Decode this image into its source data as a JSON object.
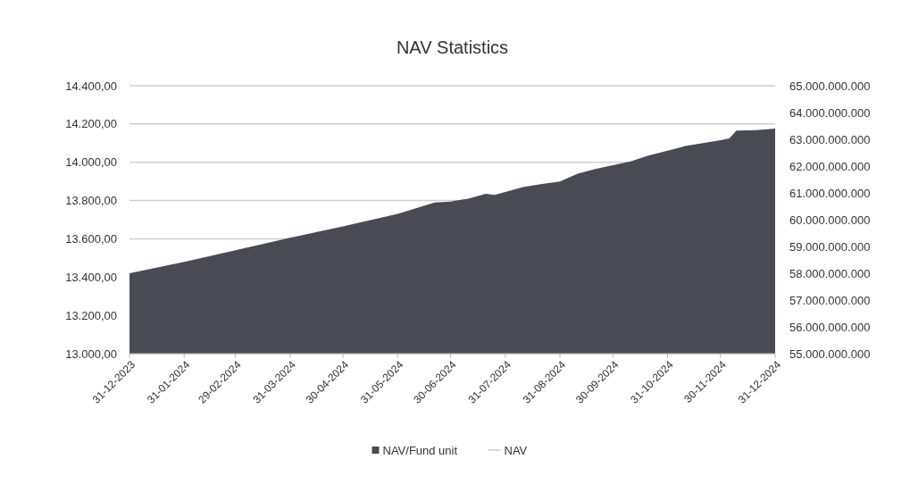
{
  "chart_data": {
    "type": "area",
    "title": "NAV Statistics",
    "xlim": [
      "2023-12-31",
      "2024-12-31"
    ],
    "xticks": [
      {
        "value": "2023-12-31",
        "label": "31-12-2023"
      },
      {
        "value": "2024-01-31",
        "label": "31-01-2024"
      },
      {
        "value": "2024-02-29",
        "label": "29-02-2024"
      },
      {
        "value": "2024-03-31",
        "label": "31-03-2024"
      },
      {
        "value": "2024-04-30",
        "label": "30-04-2024"
      },
      {
        "value": "2024-05-31",
        "label": "31-05-2024"
      },
      {
        "value": "2024-06-30",
        "label": "30-06-2024"
      },
      {
        "value": "2024-07-31",
        "label": "31-07-2024"
      },
      {
        "value": "2024-08-31",
        "label": "31-08-2024"
      },
      {
        "value": "2024-09-30",
        "label": "30-09-2024"
      },
      {
        "value": "2024-10-31",
        "label": "31-10-2024"
      },
      {
        "value": "2024-11-30",
        "label": "30-11-2024"
      },
      {
        "value": "2024-12-31",
        "label": "31-12-2024"
      }
    ],
    "ylim": [
      13000,
      14400
    ],
    "yticks": [
      {
        "value": 13000,
        "label": "13.000,00"
      },
      {
        "value": 13200,
        "label": "13.200,00"
      },
      {
        "value": 13400,
        "label": "13.400,00"
      },
      {
        "value": 13600,
        "label": "13.600,00"
      },
      {
        "value": 13800,
        "label": "13.800,00"
      },
      {
        "value": 14000,
        "label": "14.000,00"
      },
      {
        "value": 14200,
        "label": "14.200,00"
      },
      {
        "value": 14400,
        "label": "14.400,00"
      }
    ],
    "y2lim": [
      55000000000,
      65000000000
    ],
    "y2ticks": [
      {
        "value": 55000000000,
        "label": "55.000.000.000"
      },
      {
        "value": 56000000000,
        "label": "56.000.000.000"
      },
      {
        "value": 57000000000,
        "label": "57.000.000.000"
      },
      {
        "value": 58000000000,
        "label": "58.000.000.000"
      },
      {
        "value": 59000000000,
        "label": "59.000.000.000"
      },
      {
        "value": 60000000000,
        "label": "60.000.000.000"
      },
      {
        "value": 61000000000,
        "label": "61.000.000.000"
      },
      {
        "value": 62000000000,
        "label": "62.000.000.000"
      },
      {
        "value": 63000000000,
        "label": "63.000.000.000"
      },
      {
        "value": 64000000000,
        "label": "64.000.000.000"
      },
      {
        "value": 65000000000,
        "label": "65.000.000.000"
      }
    ],
    "x": [
      "2023-12-31",
      "2024-01-31",
      "2024-02-29",
      "2024-03-31",
      "2024-04-30",
      "2024-05-31",
      "2024-06-21",
      "2024-06-30",
      "2024-07-10",
      "2024-07-20",
      "2024-07-25",
      "2024-07-31",
      "2024-08-10",
      "2024-08-20",
      "2024-08-31",
      "2024-09-10",
      "2024-09-20",
      "2024-09-30",
      "2024-10-10",
      "2024-10-20",
      "2024-10-31",
      "2024-11-10",
      "2024-11-20",
      "2024-11-30",
      "2024-12-05",
      "2024-12-09",
      "2024-12-20",
      "2024-12-31"
    ],
    "series": [
      {
        "name": "NAV/Fund unit",
        "color": "#4a4a55",
        "values": [
          13420,
          13480,
          13540,
          13605,
          13665,
          13730,
          13790,
          13795,
          13810,
          13835,
          13830,
          13845,
          13870,
          13885,
          13900,
          13940,
          13965,
          13985,
          14005,
          14035,
          14060,
          14085,
          14100,
          14115,
          14125,
          14165,
          14168,
          14176
        ]
      },
      {
        "name": "NAV",
        "type": "line",
        "axis": "y2",
        "color": "#d9d9d9",
        "values": [
          null,
          null,
          null,
          null,
          null,
          null,
          null,
          null,
          null,
          null,
          null,
          null,
          null,
          null,
          null,
          null,
          null,
          null,
          null,
          null,
          null,
          null,
          null,
          null,
          null,
          null,
          null,
          null
        ]
      }
    ],
    "grid": "y",
    "legend": "bottom"
  }
}
